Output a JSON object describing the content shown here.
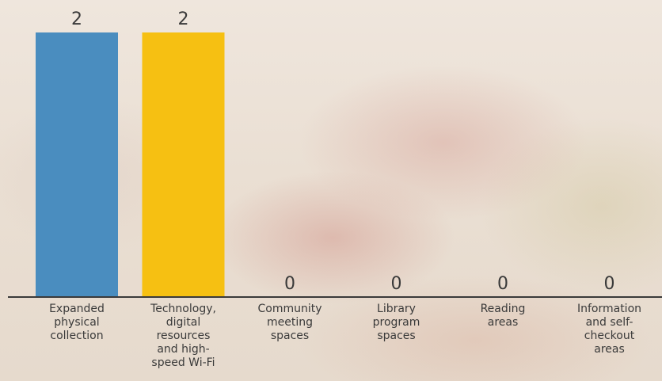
{
  "chart_data": {
    "type": "bar",
    "categories": [
      [
        "Expanded",
        "physical",
        "collection"
      ],
      [
        "Technology,",
        "digital",
        "resources",
        "and high-",
        "speed Wi-Fi"
      ],
      [
        "Community",
        "meeting",
        "spaces"
      ],
      [
        "Library",
        "program",
        "spaces"
      ],
      [
        "Reading",
        "areas"
      ],
      [
        "Information",
        "and self-",
        "checkout",
        "areas"
      ]
    ],
    "values": [
      2,
      2,
      0,
      0,
      0,
      0
    ],
    "colors": [
      "#4a8dbf",
      "#f6c012",
      "#4a8dbf",
      "#4a8dbf",
      "#4a8dbf",
      "#4a8dbf"
    ],
    "ylim": [
      0,
      2
    ],
    "title": "",
    "xlabel": "",
    "ylabel": "",
    "grid": false,
    "legend": "none"
  }
}
